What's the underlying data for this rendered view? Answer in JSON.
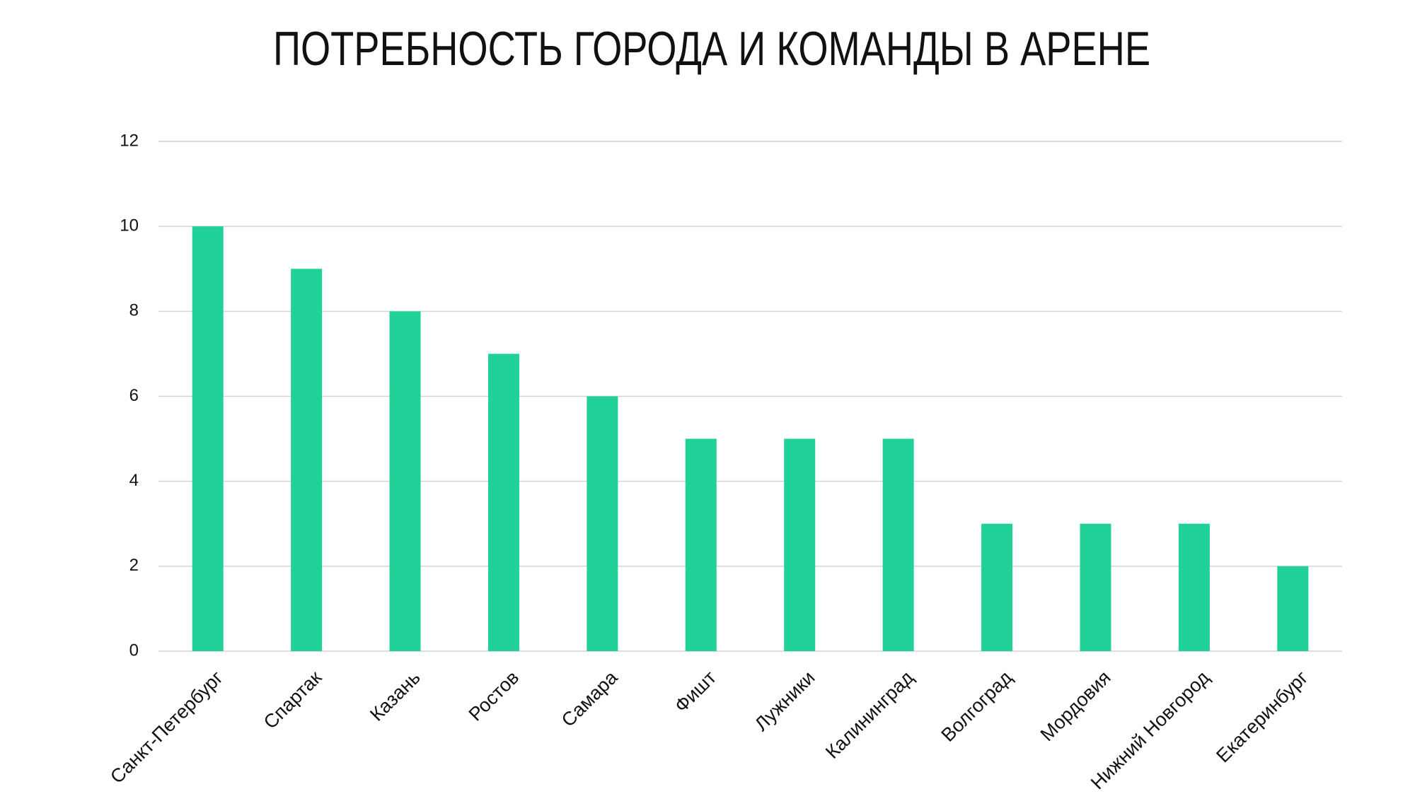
{
  "chart_data": {
    "type": "bar",
    "title": "ПОТРЕБНОСТЬ ГОРОДА И КОМАНДЫ В АРЕНЕ",
    "categories": [
      "Санкт-Петербург",
      "Спартак",
      "Казань",
      "Ростов",
      "Самара",
      "Фишт",
      "Лужники",
      "Калининград",
      "Волгоград",
      "Мордовия",
      "Нижний Новгород",
      "Екатеринбург"
    ],
    "values": [
      10,
      9,
      8,
      7,
      6,
      5,
      5,
      5,
      3,
      3,
      3,
      2
    ],
    "color": "#21d19a",
    "ylim": [
      0,
      12
    ],
    "yticks": [
      0,
      2,
      4,
      6,
      8,
      10,
      12
    ],
    "grid": true
  }
}
